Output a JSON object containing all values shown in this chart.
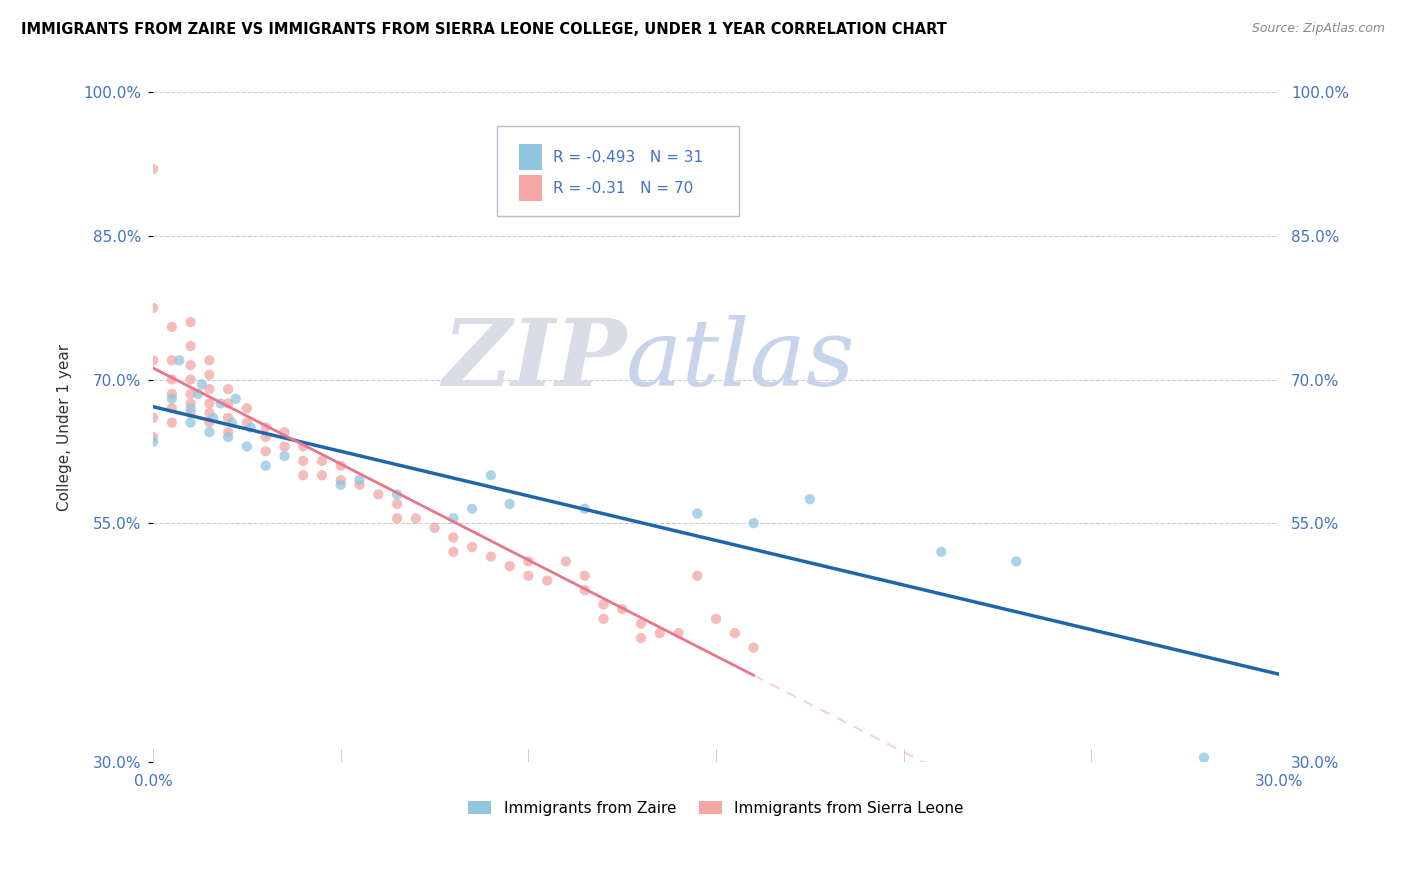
{
  "title": "IMMIGRANTS FROM ZAIRE VS IMMIGRANTS FROM SIERRA LEONE COLLEGE, UNDER 1 YEAR CORRELATION CHART",
  "source": "Source: ZipAtlas.com",
  "ylabel": "College, Under 1 year",
  "watermark_zip": "ZIP",
  "watermark_atlas": "atlas",
  "legend_zaire": "Immigrants from Zaire",
  "legend_sierra": "Immigrants from Sierra Leone",
  "R_zaire": -0.493,
  "N_zaire": 31,
  "R_sierra": -0.31,
  "N_sierra": 70,
  "xmin": 0.0,
  "xmax": 0.3,
  "ymin": 0.3,
  "ymax": 1.0,
  "ytick_values": [
    0.3,
    0.55,
    0.7,
    0.85,
    1.0
  ],
  "ytick_labels": [
    "30.0%",
    "55.0%",
    "70.0%",
    "85.0%",
    "100.0%"
  ],
  "color_zaire": "#92C5DE",
  "color_sierra": "#F4A6A6",
  "line_color_zaire": "#2166AC",
  "line_color_sierra": "#E8768A",
  "line_color_sierra_dashed": "#F4A6A6",
  "zaire_x": [
    0.0,
    0.005,
    0.007,
    0.01,
    0.01,
    0.012,
    0.013,
    0.015,
    0.016,
    0.018,
    0.02,
    0.021,
    0.022,
    0.025,
    0.026,
    0.03,
    0.035,
    0.05,
    0.055,
    0.065,
    0.08,
    0.085,
    0.09,
    0.095,
    0.115,
    0.145,
    0.16,
    0.175,
    0.21,
    0.23,
    0.28
  ],
  "zaire_y": [
    0.635,
    0.68,
    0.72,
    0.655,
    0.67,
    0.685,
    0.695,
    0.645,
    0.66,
    0.675,
    0.64,
    0.655,
    0.68,
    0.63,
    0.65,
    0.61,
    0.62,
    0.59,
    0.595,
    0.58,
    0.555,
    0.565,
    0.6,
    0.57,
    0.565,
    0.56,
    0.55,
    0.575,
    0.52,
    0.51,
    0.305
  ],
  "sierra_x": [
    0.0,
    0.0,
    0.0,
    0.0,
    0.0,
    0.005,
    0.005,
    0.005,
    0.005,
    0.005,
    0.005,
    0.01,
    0.01,
    0.01,
    0.01,
    0.01,
    0.01,
    0.01,
    0.015,
    0.015,
    0.015,
    0.015,
    0.015,
    0.015,
    0.02,
    0.02,
    0.02,
    0.02,
    0.025,
    0.025,
    0.03,
    0.03,
    0.03,
    0.035,
    0.035,
    0.04,
    0.04,
    0.04,
    0.045,
    0.045,
    0.05,
    0.05,
    0.055,
    0.06,
    0.065,
    0.065,
    0.07,
    0.075,
    0.08,
    0.08,
    0.085,
    0.09,
    0.095,
    0.1,
    0.1,
    0.105,
    0.11,
    0.115,
    0.115,
    0.12,
    0.12,
    0.125,
    0.13,
    0.13,
    0.135,
    0.14,
    0.145,
    0.15,
    0.155,
    0.16
  ],
  "sierra_y": [
    0.92,
    0.775,
    0.72,
    0.66,
    0.64,
    0.755,
    0.72,
    0.7,
    0.685,
    0.67,
    0.655,
    0.76,
    0.735,
    0.715,
    0.7,
    0.685,
    0.675,
    0.665,
    0.72,
    0.705,
    0.69,
    0.675,
    0.665,
    0.655,
    0.69,
    0.675,
    0.66,
    0.645,
    0.67,
    0.655,
    0.65,
    0.64,
    0.625,
    0.645,
    0.63,
    0.63,
    0.615,
    0.6,
    0.615,
    0.6,
    0.61,
    0.595,
    0.59,
    0.58,
    0.57,
    0.555,
    0.555,
    0.545,
    0.535,
    0.52,
    0.525,
    0.515,
    0.505,
    0.51,
    0.495,
    0.49,
    0.51,
    0.495,
    0.48,
    0.465,
    0.45,
    0.46,
    0.445,
    0.43,
    0.435,
    0.435,
    0.495,
    0.45,
    0.435,
    0.42
  ]
}
